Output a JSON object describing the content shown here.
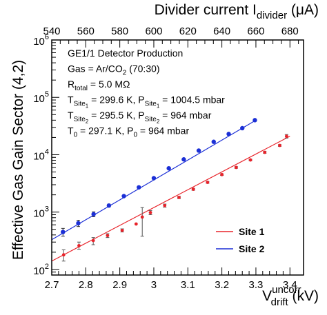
{
  "chart_data": {
    "type": "scatter",
    "title": "",
    "xlabel": {
      "main": "V",
      "sup": "uncorr",
      "sub": "drift",
      "unit": " (kV)"
    },
    "x2label": {
      "main": "Divider current I",
      "sub": "divider",
      "unit": " (μA)"
    },
    "ylabel": "Effective Gas Gain Sector (4,2)",
    "xlim": [
      2.7,
      3.44
    ],
    "x2lim": [
      540,
      688
    ],
    "ylim": [
      80,
      1000000
    ],
    "yscale": "log",
    "x_ticks": [
      "2.7",
      "2.8",
      "2.9",
      "3",
      "3.1",
      "3.2",
      "3.3",
      "3.4"
    ],
    "x2_ticks": [
      "540",
      "560",
      "580",
      "600",
      "620",
      "640",
      "660",
      "680"
    ],
    "y_ticks": [
      {
        "base": "10",
        "exp": "2",
        "value": 100
      },
      {
        "base": "10",
        "exp": "3",
        "value": 1000
      },
      {
        "base": "10",
        "exp": "4",
        "value": 10000
      },
      {
        "base": "10",
        "exp": "5",
        "value": 100000
      },
      {
        "base": "10",
        "exp": "6",
        "value": 1000000
      }
    ],
    "info_lines": [
      {
        "parts": [
          {
            "t": "GE1/1 Detector Production"
          }
        ]
      },
      {
        "parts": [
          {
            "t": "Gas = Ar/CO"
          },
          {
            "t": "2",
            "sub": true
          },
          {
            "t": " (70:30)"
          }
        ]
      },
      {
        "parts": [
          {
            "t": "R"
          },
          {
            "t": "total",
            "sub": true
          },
          {
            "t": " = 5.0 MΩ"
          }
        ]
      },
      {
        "parts": [
          {
            "t": "T"
          },
          {
            "t": "Site",
            "sub": true
          },
          {
            "t": "1",
            "sub2": true
          },
          {
            "t": " = 299.6 K, P"
          },
          {
            "t": "Site",
            "sub": true
          },
          {
            "t": "1",
            "sub2": true
          },
          {
            "t": " = 1004.5 mbar"
          }
        ]
      },
      {
        "parts": [
          {
            "t": "T"
          },
          {
            "t": "Site",
            "sub": true
          },
          {
            "t": "2",
            "sub2": true
          },
          {
            "t": " = 295.5 K, P"
          },
          {
            "t": "Site",
            "sub": true
          },
          {
            "t": "2",
            "sub2": true
          },
          {
            "t": " = 964 mbar"
          }
        ]
      },
      {
        "parts": [
          {
            "t": "T"
          },
          {
            "t": "0",
            "sub": true
          },
          {
            "t": " = 297.1 K, P"
          },
          {
            "t": "0",
            "sub": true
          },
          {
            "t": " = 964 mbar"
          }
        ]
      }
    ],
    "series": [
      {
        "name": "Site 1",
        "color": "#e8232a",
        "fit": {
          "x0": 2.7,
          "y0": 140,
          "x1": 3.4,
          "y1": 21000
        },
        "points": [
          {
            "x": 2.735,
            "y": 180,
            "err": [
              140,
              220
            ]
          },
          {
            "x": 2.78,
            "y": 260,
            "err": [
              225,
              300
            ]
          },
          {
            "x": 2.822,
            "y": 320,
            "err": [
              270,
              360
            ]
          },
          {
            "x": 2.864,
            "y": 390,
            "err": [
              360,
              420
            ]
          },
          {
            "x": 2.907,
            "y": 480,
            "err": [
              450,
              510
            ]
          },
          {
            "x": 2.948,
            "y": 620,
            "err": null
          },
          {
            "x": 2.966,
            "y": 820,
            "err": [
              380,
              1200
            ]
          },
          {
            "x": 2.99,
            "y": 980,
            "err": [
              900,
              1060
            ]
          },
          {
            "x": 3.032,
            "y": 1300,
            "err": [
              1220,
              1380
            ]
          },
          {
            "x": 3.074,
            "y": 1800,
            "err": [
              1720,
              1880
            ]
          },
          {
            "x": 3.116,
            "y": 2500,
            "err": [
              2400,
              2600
            ]
          },
          {
            "x": 3.158,
            "y": 3300,
            "err": [
              3180,
              3420
            ]
          },
          {
            "x": 3.2,
            "y": 4500,
            "err": [
              4350,
              4650
            ]
          },
          {
            "x": 3.242,
            "y": 6000,
            "err": [
              5800,
              6200
            ]
          },
          {
            "x": 3.284,
            "y": 8100,
            "err": [
              7850,
              8350
            ]
          },
          {
            "x": 3.326,
            "y": 11000,
            "err": [
              10600,
              11400
            ]
          },
          {
            "x": 3.37,
            "y": 14500,
            "err": [
              14000,
              15000
            ]
          },
          {
            "x": 3.39,
            "y": 21000,
            "err": [
              19500,
              22500
            ]
          }
        ]
      },
      {
        "name": "Site 2",
        "color": "#1b2fd6",
        "fit": {
          "x0": 2.7,
          "y0": 330,
          "x1": 3.3,
          "y1": 40000
        },
        "points": [
          {
            "x": 2.733,
            "y": 450,
            "err": [
              380,
              520
            ]
          },
          {
            "x": 2.778,
            "y": 640,
            "err": [
              560,
              720
            ]
          },
          {
            "x": 2.823,
            "y": 920,
            "err": [
              830,
              1010
            ]
          },
          {
            "x": 2.868,
            "y": 1300,
            "err": [
              1230,
              1370
            ]
          },
          {
            "x": 2.912,
            "y": 1900,
            "err": [
              1840,
              1960
            ]
          },
          {
            "x": 2.956,
            "y": 2700,
            "err": [
              2620,
              2780
            ]
          },
          {
            "x": 3.0,
            "y": 3900,
            "err": [
              3800,
              4000
            ]
          },
          {
            "x": 3.044,
            "y": 5800,
            "err": [
              5650,
              5950
            ]
          },
          {
            "x": 3.088,
            "y": 8300,
            "err": [
              8100,
              8500
            ]
          },
          {
            "x": 3.132,
            "y": 11800,
            "err": [
              11500,
              12100
            ]
          },
          {
            "x": 3.176,
            "y": 16800,
            "err": [
              16400,
              17200
            ]
          },
          {
            "x": 3.22,
            "y": 23000,
            "err": [
              22400,
              23600
            ]
          },
          {
            "x": 3.26,
            "y": 29000,
            "err": [
              28200,
              29800
            ]
          },
          {
            "x": 3.297,
            "y": 40000,
            "err": [
              39000,
              41000
            ]
          }
        ]
      }
    ],
    "legend": {
      "placement": "bottom-right"
    },
    "grid": false
  }
}
